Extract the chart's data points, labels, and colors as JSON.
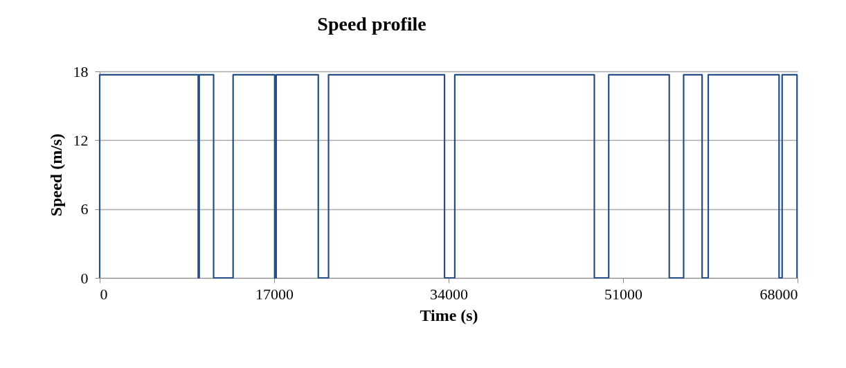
{
  "chart_data": {
    "type": "line",
    "title": "Speed profile",
    "xlabel": "Time (s)",
    "ylabel": "Speed (m/s)",
    "xlim": [
      0,
      68000
    ],
    "xticks": [
      0,
      17000,
      34000,
      51000,
      68000
    ],
    "ylim": [
      0,
      18
    ],
    "yticks": [
      0,
      6,
      12,
      18
    ],
    "grid": "y",
    "marker": "none",
    "line_style": "solid",
    "x": [
      0,
      0,
      9600,
      9600,
      9700,
      9700,
      11100,
      11100,
      13000,
      13000,
      17050,
      17050,
      17200,
      17200,
      21300,
      21300,
      22300,
      22300,
      33600,
      33600,
      34600,
      34600,
      48200,
      48200,
      49600,
      49600,
      55500,
      55500,
      56900,
      56900,
      58700,
      58700,
      59300,
      59300,
      66200,
      66200,
      66500,
      66500,
      67950,
      67950
    ],
    "series": [
      {
        "color": "#254e84",
        "values": [
          0,
          17.7,
          17.7,
          0,
          0,
          17.7,
          17.7,
          0,
          0,
          17.7,
          17.7,
          0,
          0,
          17.7,
          17.7,
          0,
          0,
          17.7,
          17.7,
          0,
          0,
          17.7,
          17.7,
          0,
          0,
          17.7,
          17.7,
          0,
          0,
          17.7,
          17.7,
          0,
          0,
          17.7,
          17.7,
          0,
          0,
          17.7,
          17.7,
          0
        ]
      }
    ]
  }
}
